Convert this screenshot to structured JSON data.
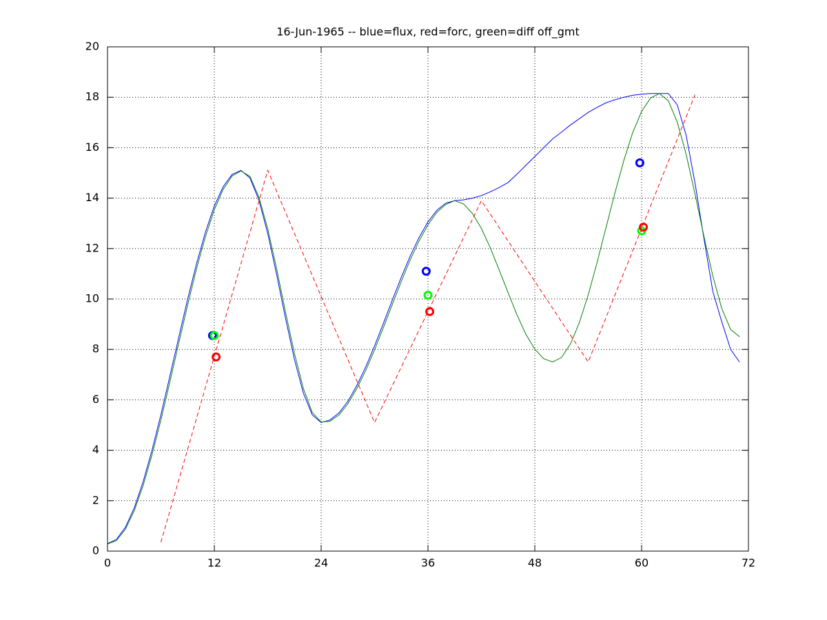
{
  "chart_data": {
    "type": "line",
    "title": "16-Jun-1965 -- blue=flux, red=forc, green=diff off_gmt",
    "xlim": [
      0,
      72
    ],
    "xticks": [
      0,
      12,
      24,
      36,
      48,
      60,
      72
    ],
    "ylim": [
      0,
      20
    ],
    "yticks": [
      0,
      2,
      4,
      6,
      8,
      10,
      12,
      14,
      16,
      18,
      20
    ],
    "grid": true,
    "series": [
      {
        "color": "#0000ff",
        "linestyle": "solid",
        "x": [
          0,
          1,
          2,
          3,
          4,
          5,
          6,
          7,
          8,
          9,
          10,
          11,
          12,
          13,
          14,
          15,
          16,
          17,
          18,
          19,
          20,
          21,
          22,
          23,
          24,
          25,
          26,
          27,
          28,
          29,
          30,
          31,
          32,
          33,
          34,
          35,
          36,
          37,
          38,
          39,
          40,
          41,
          42,
          43,
          44,
          45,
          46,
          47,
          48,
          49,
          50,
          51,
          52,
          53,
          54,
          55,
          56,
          57,
          58,
          59,
          60,
          61,
          62,
          63,
          64,
          65,
          66,
          67,
          68,
          69,
          70,
          71
        ],
        "values": [
          0.3,
          0.46,
          0.94,
          1.71,
          2.75,
          4.0,
          5.41,
          6.93,
          8.47,
          9.99,
          11.4,
          12.65,
          13.69,
          14.46,
          14.94,
          15.1,
          14.8,
          13.93,
          12.6,
          10.97,
          9.23,
          7.6,
          6.27,
          5.4,
          5.1,
          5.2,
          5.48,
          5.94,
          6.56,
          7.3,
          8.14,
          9.04,
          9.96,
          10.86,
          11.7,
          12.44,
          13.06,
          13.52,
          13.8,
          13.9,
          13.93,
          14.0,
          14.1,
          14.25,
          14.42,
          14.62,
          14.95,
          15.3,
          15.65,
          16.0,
          16.35,
          16.62,
          16.9,
          17.15,
          17.4,
          17.6,
          17.78,
          17.9,
          18.0,
          18.08,
          18.12,
          18.15,
          18.15,
          18.15,
          17.7,
          16.5,
          14.6,
          12.4,
          10.3,
          9.1,
          8.0,
          7.5
        ]
      },
      {
        "color": "#008000",
        "linestyle": "solid",
        "x": [
          0,
          1,
          2,
          3,
          4,
          5,
          6,
          7,
          8,
          9,
          10,
          11,
          12,
          13,
          14,
          15,
          16,
          17,
          18,
          19,
          20,
          21,
          22,
          23,
          24,
          25,
          26,
          27,
          28,
          29,
          30,
          31,
          32,
          33,
          34,
          35,
          36,
          37,
          38,
          39,
          40,
          41,
          42,
          43,
          44,
          45,
          46,
          47,
          48,
          49,
          50,
          51,
          52,
          53,
          54,
          55,
          56,
          57,
          58,
          59,
          60,
          61,
          62,
          63,
          64,
          65,
          66,
          67,
          68,
          69,
          70,
          71
        ],
        "values": [
          0.28,
          0.42,
          0.86,
          1.6,
          2.6,
          3.82,
          5.2,
          6.7,
          8.24,
          9.76,
          11.2,
          12.47,
          13.54,
          14.35,
          14.88,
          15.08,
          14.86,
          14.05,
          12.78,
          11.2,
          9.47,
          7.84,
          6.45,
          5.5,
          5.12,
          5.15,
          5.4,
          5.84,
          6.44,
          7.16,
          7.98,
          8.87,
          9.79,
          10.69,
          11.55,
          12.3,
          12.94,
          13.44,
          13.75,
          13.9,
          13.77,
          13.39,
          12.8,
          12.03,
          11.15,
          10.25,
          9.37,
          8.6,
          8.01,
          7.63,
          7.5,
          7.68,
          8.21,
          9.06,
          10.16,
          11.45,
          12.83,
          14.2,
          15.49,
          16.6,
          17.44,
          17.97,
          18.15,
          17.86,
          17.02,
          15.74,
          14.16,
          12.49,
          10.91,
          9.63,
          8.79,
          8.5
        ]
      },
      {
        "color": "#ff0000",
        "linestyle": "dashed",
        "x": [
          6,
          18,
          30,
          42,
          54,
          66
        ],
        "values": [
          0.35,
          15.1,
          5.1,
          13.9,
          7.5,
          18.1
        ]
      },
      {
        "color": "#0000ff",
        "linestyle": "none",
        "marker": "o",
        "x": [
          11.8,
          35.8,
          59.8
        ],
        "values": [
          8.55,
          11.1,
          15.4
        ]
      },
      {
        "color": "#00ff00",
        "linestyle": "none",
        "marker": "o",
        "x": [
          12.0,
          36.0,
          60.0
        ],
        "values": [
          8.55,
          10.15,
          12.7
        ]
      },
      {
        "color": "#ff0000",
        "linestyle": "none",
        "marker": "o",
        "x": [
          12.2,
          36.2,
          60.2
        ],
        "values": [
          7.7,
          9.5,
          12.85
        ]
      }
    ]
  }
}
